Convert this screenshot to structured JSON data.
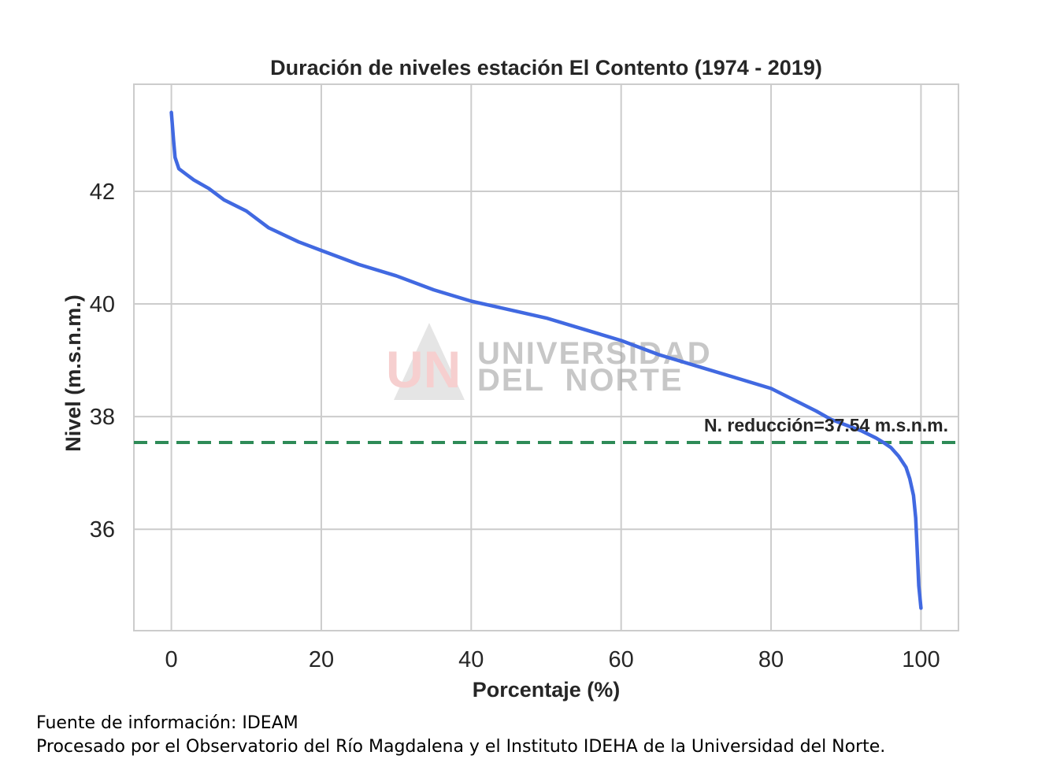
{
  "chart_data": {
    "type": "line",
    "title": "Duración de niveles estación El Contento (1974 - 2019)",
    "xlabel": "Porcentaje (%)",
    "ylabel": "Nivel (m.s.n.m.)",
    "xlim": [
      -5,
      105
    ],
    "ylim": [
      34.2,
      43.9
    ],
    "xticks": [
      0,
      20,
      40,
      60,
      80,
      100
    ],
    "yticks": [
      36,
      38,
      40,
      42
    ],
    "grid": true,
    "series": [
      {
        "color": "#4169e1",
        "x": [
          0,
          0.3,
          0.5,
          1,
          2,
          3,
          5,
          7,
          10,
          13,
          17,
          20,
          25,
          30,
          35,
          40,
          45,
          50,
          55,
          60,
          65,
          70,
          75,
          80,
          83,
          86,
          88,
          90,
          92,
          94,
          95,
          96,
          97,
          98,
          98.5,
          99,
          99.3,
          99.5,
          99.7,
          100
        ],
        "y": [
          43.4,
          42.9,
          42.6,
          42.4,
          42.3,
          42.2,
          42.05,
          41.85,
          41.65,
          41.35,
          41.1,
          40.95,
          40.7,
          40.5,
          40.25,
          40.05,
          39.9,
          39.75,
          39.55,
          39.35,
          39.1,
          38.9,
          38.7,
          38.5,
          38.3,
          38.1,
          37.95,
          37.85,
          37.75,
          37.62,
          37.54,
          37.45,
          37.3,
          37.1,
          36.9,
          36.6,
          36.2,
          35.6,
          35.0,
          34.6
        ]
      }
    ],
    "reference_line": {
      "value": 37.54,
      "color": "#2e8b57",
      "label": "N. reducción=37.54 m.s.n.m."
    },
    "watermark": {
      "logo": "UN",
      "line1": "UNIVERSIDAD",
      "line2": "DEL  NORTE"
    }
  },
  "footer": {
    "line1": "Fuente de información: IDEAM",
    "line2": "Procesado por el Observatorio del Río Magdalena y el Instituto IDEHA de la Universidad del Norte."
  }
}
